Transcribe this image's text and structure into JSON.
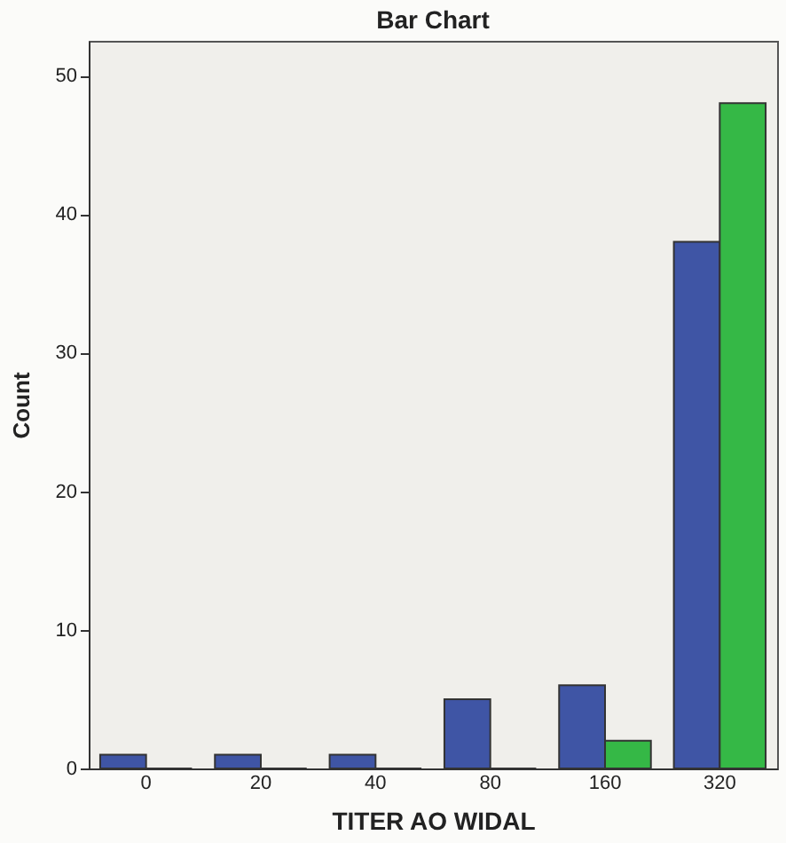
{
  "chart_data": {
    "type": "bar",
    "title": "Bar Chart",
    "xlabel": "TITER AO WIDAL",
    "ylabel": "Count",
    "categories": [
      "0",
      "20",
      "40",
      "80",
      "160",
      "320"
    ],
    "series": [
      {
        "color": "#3f55a5",
        "values": [
          1,
          1,
          1,
          5,
          6,
          38
        ]
      },
      {
        "color": "#35b846",
        "values": [
          0,
          0,
          0,
          0,
          2,
          48
        ]
      }
    ],
    "ylim": [
      0,
      52.5
    ],
    "yticks": [
      0,
      10,
      20,
      30,
      40,
      50
    ],
    "grid": false,
    "legend": false
  }
}
